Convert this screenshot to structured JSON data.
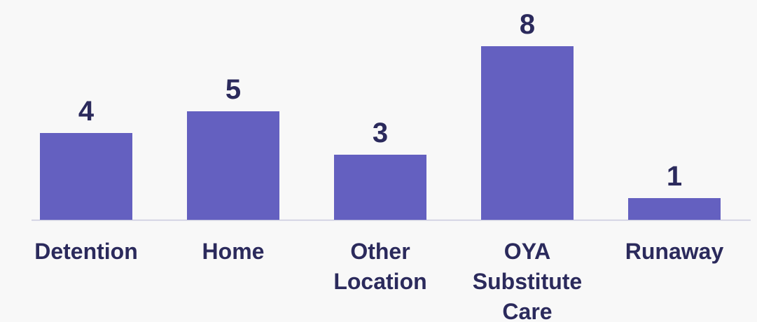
{
  "chart_data": {
    "type": "bar",
    "categories": [
      "Detention",
      "Home",
      "Other Location",
      "OYA Substitute Care",
      "Runaway"
    ],
    "values": [
      4,
      5,
      3,
      8,
      1
    ],
    "color": "#6460c0"
  }
}
